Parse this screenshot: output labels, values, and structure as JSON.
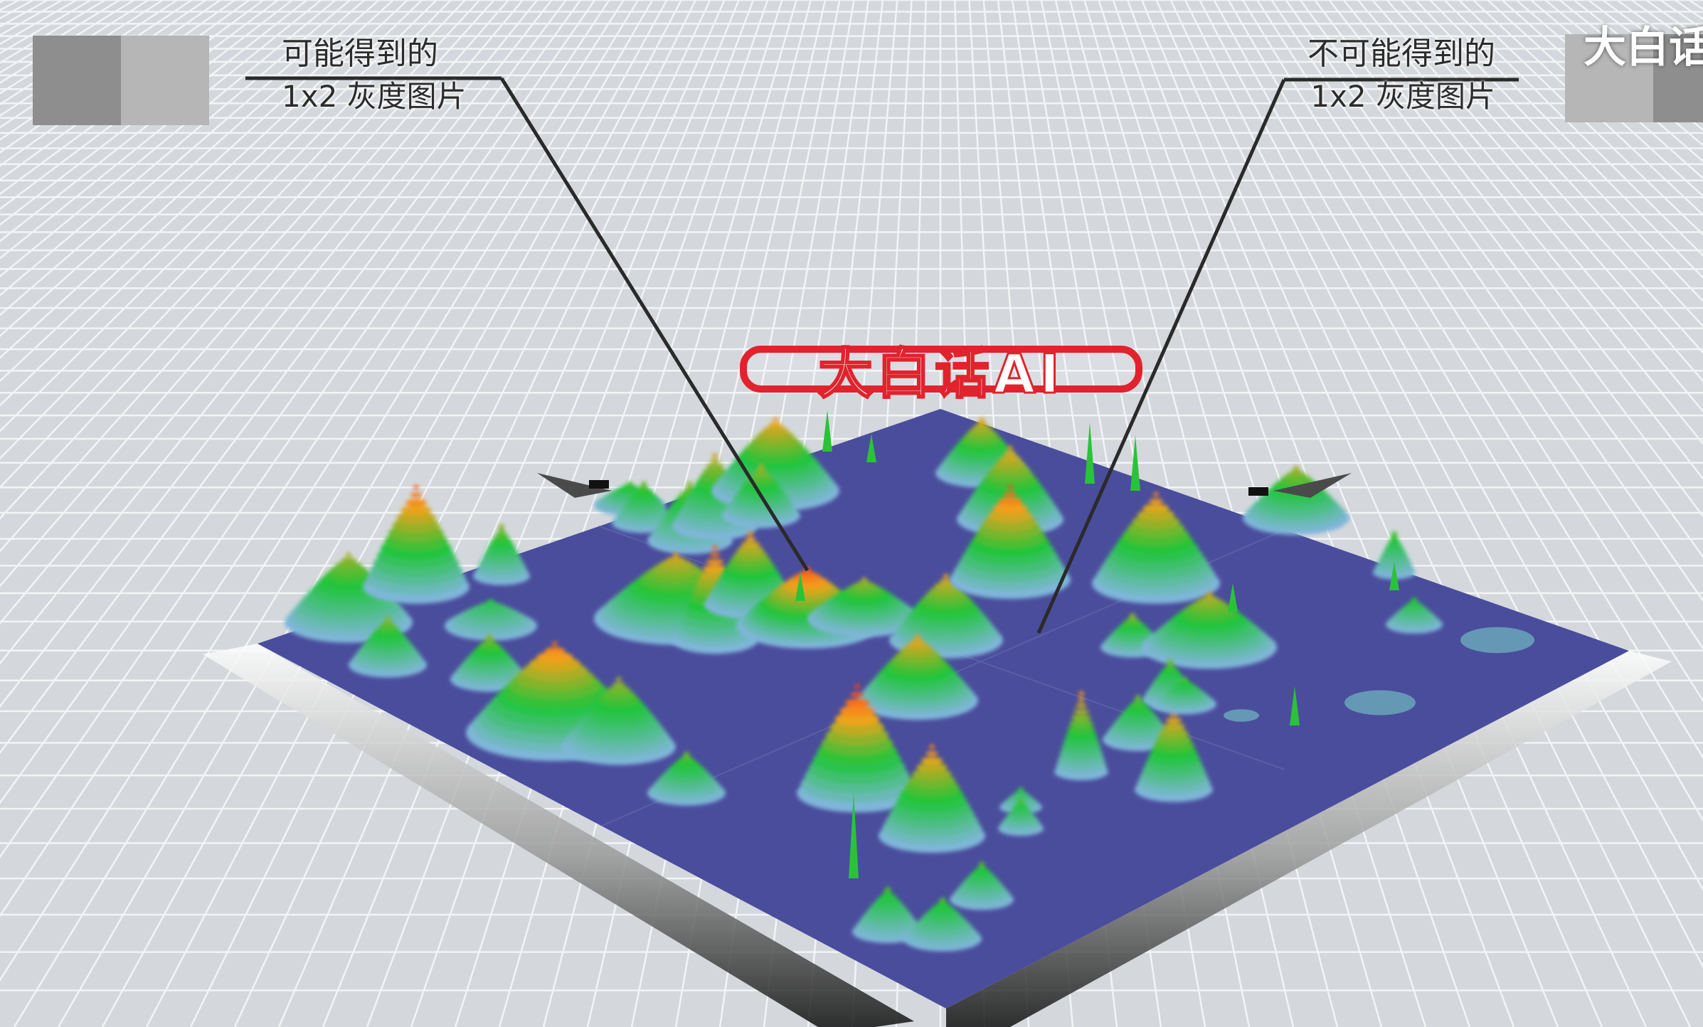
{
  "annotations": {
    "left": {
      "line1": "可能得到的",
      "line2": "1x2 灰度图片"
    },
    "right": {
      "line1": "不可能得到的",
      "line2": "1x2 灰度图片"
    }
  },
  "watermark": {
    "text": "大白话"
  },
  "stamp": {
    "text": "大白话AI"
  },
  "swatches": {
    "left": [
      "#8e8e8e",
      "#b6b6b6"
    ],
    "right": [
      "#b6b6b6",
      "#8e8e8e"
    ]
  },
  "colors": {
    "background": "#d4d8dc",
    "surface_base": "#4a4d9c",
    "gridline": "#f2f4f6",
    "stamp_red": "#e0232d",
    "colormap": [
      "#7fb6d9",
      "#1fc53a",
      "#f2a21a",
      "#ff2a1a"
    ]
  }
}
